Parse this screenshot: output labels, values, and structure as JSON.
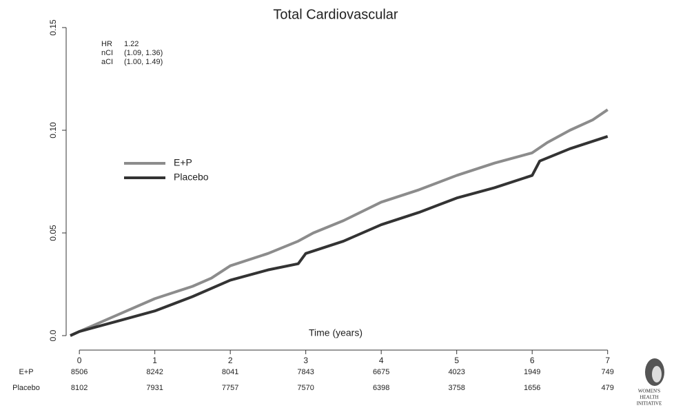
{
  "chart_data": {
    "type": "line",
    "title": "Total Cardiovascular",
    "x_label": "Time (years)",
    "annotations": [
      [
        "HR",
        "1.22"
      ],
      [
        "nCI",
        "(1.09, 1.36)"
      ],
      [
        "aCI",
        "(1.00, 1.49)"
      ]
    ],
    "xlim": [
      -0.12,
      7.03
    ],
    "ylim": [
      0,
      0.15
    ],
    "xticks": [
      0,
      1,
      2,
      3,
      4,
      5,
      6,
      7
    ],
    "yticks": [
      {
        "value": 0,
        "label": "0.0"
      },
      0.05,
      {
        "value": 0.1,
        "label": "0.10"
      },
      0.15
    ],
    "legend": "upper left",
    "series": [
      {
        "name": "E+P",
        "color": "#8c8c8c",
        "x": [
          -0.12,
          0,
          0.5,
          1,
          1.5,
          1.75,
          2,
          2.5,
          2.9,
          3.1,
          3.5,
          4,
          4.5,
          5,
          5.5,
          6,
          6.2,
          6.5,
          6.8,
          7
        ],
        "values": [
          0,
          0.002,
          0.01,
          0.018,
          0.024,
          0.028,
          0.034,
          0.04,
          0.046,
          0.05,
          0.056,
          0.065,
          0.071,
          0.078,
          0.084,
          0.089,
          0.094,
          0.1,
          0.105,
          0.11
        ]
      },
      {
        "name": "Placebo",
        "color": "#333333",
        "x": [
          -0.12,
          0,
          0.5,
          1,
          1.5,
          2,
          2.5,
          2.9,
          3.0,
          3.5,
          4,
          4.5,
          5,
          5.5,
          6,
          6.1,
          6.5,
          7
        ],
        "values": [
          0,
          0.002,
          0.007,
          0.012,
          0.019,
          0.027,
          0.032,
          0.035,
          0.04,
          0.046,
          0.054,
          0.06,
          0.067,
          0.072,
          0.078,
          0.085,
          0.091,
          0.097
        ]
      }
    ],
    "risk_table": [
      {
        "label": "E+P",
        "values": [
          8506,
          8242,
          8041,
          7843,
          6675,
          4023,
          1949,
          749
        ]
      },
      {
        "label": "Placebo",
        "values": [
          8102,
          7931,
          7757,
          7570,
          6398,
          3758,
          1656,
          479
        ]
      }
    ],
    "logo": [
      "WOMEN'S",
      "HEALTH",
      "INITIATIVE"
    ]
  }
}
